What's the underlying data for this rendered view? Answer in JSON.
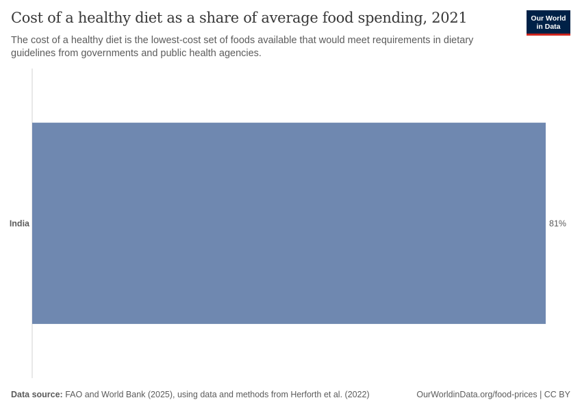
{
  "header": {
    "title": "Cost of a healthy diet as a share of average food spending, 2021",
    "subtitle": "The cost of a healthy diet is the lowest-cost set of foods available that would meet requirements in dietary guidelines from governments and public health agencies."
  },
  "logo": {
    "line1": "Our World",
    "line2": "in Data"
  },
  "footer": {
    "source_label": "Data source:",
    "source_text": "FAO and World Bank (2025), using data and methods from Herforth et al. (2022)",
    "link": "OurWorldinData.org/food-prices | CC BY"
  },
  "colors": {
    "bar": "#6f88b0",
    "axis": "#d0d0d0",
    "logo_bg": "#002147",
    "logo_accent": "#ce261e"
  },
  "chart_data": {
    "type": "bar",
    "orientation": "horizontal",
    "categories": [
      "India"
    ],
    "values": [
      81
    ],
    "value_labels": [
      "81%"
    ],
    "unit": "%",
    "xlim": [
      0,
      81
    ],
    "grid": false
  }
}
